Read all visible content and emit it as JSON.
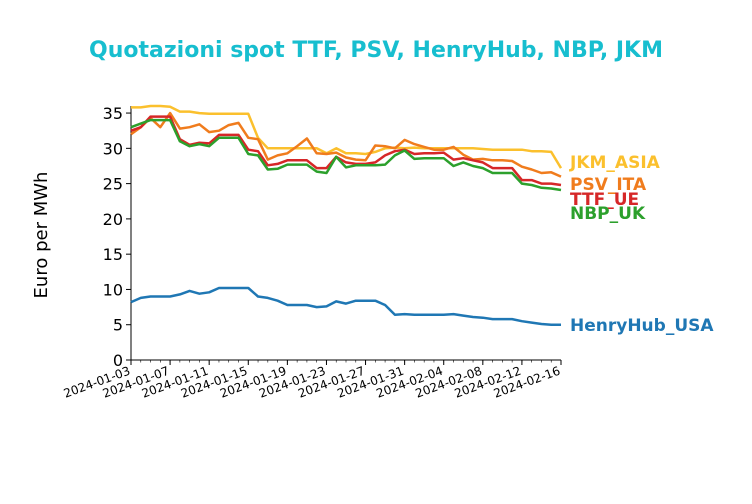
{
  "chart_data": {
    "type": "line",
    "title": "Quotazioni spot TTF, PSV, HenryHub, NBP, JKM",
    "xlabel": "",
    "ylabel": "Euro per MWh",
    "ylim": [
      0,
      36
    ],
    "yticks": [
      0,
      5,
      10,
      15,
      20,
      25,
      30,
      35
    ],
    "xlim": [
      "2024-01-03",
      "2024-02-16"
    ],
    "xtick_labels": [
      "2024-01-03",
      "2024-01-07",
      "2024-01-11",
      "2024-01-15",
      "2024-01-19",
      "2024-01-23",
      "2024-01-27",
      "2024-01-31",
      "2024-02-04",
      "2024-02-08",
      "2024-02-12",
      "2024-02-16"
    ],
    "grid": false,
    "legend": "direct labels at right end of lines",
    "series": [
      {
        "name": "JKM_ASIA",
        "color": "#fbc02d",
        "points": [
          [
            "2024-01-03",
            35.8
          ],
          [
            "2024-01-04",
            35.8
          ],
          [
            "2024-01-05",
            36.0
          ],
          [
            "2024-01-06",
            36.0
          ],
          [
            "2024-01-07",
            35.9
          ],
          [
            "2024-01-08",
            35.2
          ],
          [
            "2024-01-09",
            35.2
          ],
          [
            "2024-01-10",
            35.0
          ],
          [
            "2024-01-11",
            34.9
          ],
          [
            "2024-01-12",
            34.9
          ],
          [
            "2024-01-13",
            34.9
          ],
          [
            "2024-01-14",
            34.9
          ],
          [
            "2024-01-15",
            34.9
          ],
          [
            "2024-01-16",
            31.5
          ],
          [
            "2024-01-17",
            30.0
          ],
          [
            "2024-01-18",
            30.0
          ],
          [
            "2024-01-19",
            30.0
          ],
          [
            "2024-01-20",
            30.0
          ],
          [
            "2024-01-21",
            30.0
          ],
          [
            "2024-01-22",
            30.0
          ],
          [
            "2024-01-23",
            29.3
          ],
          [
            "2024-01-24",
            30.0
          ],
          [
            "2024-01-25",
            29.3
          ],
          [
            "2024-01-26",
            29.3
          ],
          [
            "2024-01-27",
            29.2
          ],
          [
            "2024-01-28",
            29.5
          ],
          [
            "2024-01-29",
            30.0
          ],
          [
            "2024-01-30",
            30.1
          ],
          [
            "2024-01-31",
            30.0
          ],
          [
            "2024-02-01",
            30.1
          ],
          [
            "2024-02-02",
            30.0
          ],
          [
            "2024-02-03",
            30.0
          ],
          [
            "2024-02-04",
            30.0
          ],
          [
            "2024-02-05",
            30.0
          ],
          [
            "2024-02-06",
            30.0
          ],
          [
            "2024-02-07",
            30.0
          ],
          [
            "2024-02-08",
            29.9
          ],
          [
            "2024-02-09",
            29.8
          ],
          [
            "2024-02-10",
            29.8
          ],
          [
            "2024-02-11",
            29.8
          ],
          [
            "2024-02-12",
            29.8
          ],
          [
            "2024-02-13",
            29.6
          ],
          [
            "2024-02-14",
            29.6
          ],
          [
            "2024-02-15",
            29.5
          ],
          [
            "2024-02-16",
            27.2
          ]
        ]
      },
      {
        "name": "PSV_ITA",
        "color": "#f07c1d",
        "points": [
          [
            "2024-01-03",
            32.0
          ],
          [
            "2024-01-04",
            33.0
          ],
          [
            "2024-01-05",
            34.3
          ],
          [
            "2024-01-06",
            33.0
          ],
          [
            "2024-01-07",
            35.0
          ],
          [
            "2024-01-08",
            32.8
          ],
          [
            "2024-01-09",
            33.0
          ],
          [
            "2024-01-10",
            33.4
          ],
          [
            "2024-01-11",
            32.3
          ],
          [
            "2024-01-12",
            32.5
          ],
          [
            "2024-01-13",
            33.3
          ],
          [
            "2024-01-14",
            33.6
          ],
          [
            "2024-01-15",
            31.5
          ],
          [
            "2024-01-16",
            31.3
          ],
          [
            "2024-01-17",
            28.4
          ],
          [
            "2024-01-18",
            29.0
          ],
          [
            "2024-01-19",
            29.3
          ],
          [
            "2024-01-20",
            30.3
          ],
          [
            "2024-01-21",
            31.4
          ],
          [
            "2024-01-22",
            29.3
          ],
          [
            "2024-01-23",
            29.2
          ],
          [
            "2024-01-24",
            29.4
          ],
          [
            "2024-01-25",
            28.7
          ],
          [
            "2024-01-26",
            28.4
          ],
          [
            "2024-01-27",
            28.3
          ],
          [
            "2024-01-28",
            30.4
          ],
          [
            "2024-01-29",
            30.3
          ],
          [
            "2024-01-30",
            30.0
          ],
          [
            "2024-01-31",
            31.2
          ],
          [
            "2024-02-01",
            30.6
          ],
          [
            "2024-02-02",
            30.2
          ],
          [
            "2024-02-03",
            29.8
          ],
          [
            "2024-02-04",
            29.8
          ],
          [
            "2024-02-05",
            30.2
          ],
          [
            "2024-02-06",
            29.1
          ],
          [
            "2024-02-07",
            28.4
          ],
          [
            "2024-02-08",
            28.5
          ],
          [
            "2024-02-09",
            28.3
          ],
          [
            "2024-02-10",
            28.3
          ],
          [
            "2024-02-11",
            28.2
          ],
          [
            "2024-02-12",
            27.4
          ],
          [
            "2024-02-13",
            27.0
          ],
          [
            "2024-02-14",
            26.5
          ],
          [
            "2024-02-15",
            26.6
          ],
          [
            "2024-02-16",
            26.0
          ]
        ]
      },
      {
        "name": "TTF_UE",
        "color": "#d62728",
        "points": [
          [
            "2024-01-03",
            32.5
          ],
          [
            "2024-01-04",
            33.0
          ],
          [
            "2024-01-05",
            34.5
          ],
          [
            "2024-01-06",
            34.5
          ],
          [
            "2024-01-07",
            34.5
          ],
          [
            "2024-01-08",
            31.3
          ],
          [
            "2024-01-09",
            30.5
          ],
          [
            "2024-01-10",
            30.8
          ],
          [
            "2024-01-11",
            30.7
          ],
          [
            "2024-01-12",
            31.9
          ],
          [
            "2024-01-13",
            31.9
          ],
          [
            "2024-01-14",
            31.9
          ],
          [
            "2024-01-15",
            29.8
          ],
          [
            "2024-01-16",
            29.6
          ],
          [
            "2024-01-17",
            27.6
          ],
          [
            "2024-01-18",
            27.8
          ],
          [
            "2024-01-19",
            28.3
          ],
          [
            "2024-01-20",
            28.3
          ],
          [
            "2024-01-21",
            28.3
          ],
          [
            "2024-01-22",
            27.2
          ],
          [
            "2024-01-23",
            27.2
          ],
          [
            "2024-01-24",
            28.8
          ],
          [
            "2024-01-25",
            28.0
          ],
          [
            "2024-01-26",
            27.8
          ],
          [
            "2024-01-27",
            27.8
          ],
          [
            "2024-01-28",
            28.0
          ],
          [
            "2024-01-29",
            29.0
          ],
          [
            "2024-01-30",
            29.6
          ],
          [
            "2024-01-31",
            29.8
          ],
          [
            "2024-02-01",
            29.2
          ],
          [
            "2024-02-02",
            29.3
          ],
          [
            "2024-02-03",
            29.3
          ],
          [
            "2024-02-04",
            29.4
          ],
          [
            "2024-02-05",
            28.4
          ],
          [
            "2024-02-06",
            28.6
          ],
          [
            "2024-02-07",
            28.3
          ],
          [
            "2024-02-08",
            28.0
          ],
          [
            "2024-02-09",
            27.2
          ],
          [
            "2024-02-10",
            27.2
          ],
          [
            "2024-02-11",
            27.2
          ],
          [
            "2024-02-12",
            25.5
          ],
          [
            "2024-02-13",
            25.5
          ],
          [
            "2024-02-14",
            25.0
          ],
          [
            "2024-02-15",
            25.0
          ],
          [
            "2024-02-16",
            24.8
          ]
        ]
      },
      {
        "name": "NBP_UK",
        "color": "#2ca02c",
        "points": [
          [
            "2024-01-03",
            33.0
          ],
          [
            "2024-01-04",
            33.5
          ],
          [
            "2024-01-05",
            34.0
          ],
          [
            "2024-01-06",
            34.0
          ],
          [
            "2024-01-07",
            34.0
          ],
          [
            "2024-01-08",
            31.0
          ],
          [
            "2024-01-09",
            30.3
          ],
          [
            "2024-01-10",
            30.6
          ],
          [
            "2024-01-11",
            30.3
          ],
          [
            "2024-01-12",
            31.5
          ],
          [
            "2024-01-13",
            31.5
          ],
          [
            "2024-01-14",
            31.5
          ],
          [
            "2024-01-15",
            29.2
          ],
          [
            "2024-01-16",
            29.0
          ],
          [
            "2024-01-17",
            27.0
          ],
          [
            "2024-01-18",
            27.1
          ],
          [
            "2024-01-19",
            27.7
          ],
          [
            "2024-01-20",
            27.7
          ],
          [
            "2024-01-21",
            27.7
          ],
          [
            "2024-01-22",
            26.7
          ],
          [
            "2024-01-23",
            26.5
          ],
          [
            "2024-01-24",
            28.8
          ],
          [
            "2024-01-25",
            27.3
          ],
          [
            "2024-01-26",
            27.6
          ],
          [
            "2024-01-27",
            27.6
          ],
          [
            "2024-01-28",
            27.6
          ],
          [
            "2024-01-29",
            27.7
          ],
          [
            "2024-01-30",
            29.0
          ],
          [
            "2024-01-31",
            29.7
          ],
          [
            "2024-02-01",
            28.5
          ],
          [
            "2024-02-02",
            28.6
          ],
          [
            "2024-02-03",
            28.6
          ],
          [
            "2024-02-04",
            28.6
          ],
          [
            "2024-02-05",
            27.5
          ],
          [
            "2024-02-06",
            28.0
          ],
          [
            "2024-02-07",
            27.5
          ],
          [
            "2024-02-08",
            27.2
          ],
          [
            "2024-02-09",
            26.5
          ],
          [
            "2024-02-10",
            26.5
          ],
          [
            "2024-02-11",
            26.5
          ],
          [
            "2024-02-12",
            25.0
          ],
          [
            "2024-02-13",
            24.8
          ],
          [
            "2024-02-14",
            24.4
          ],
          [
            "2024-02-15",
            24.3
          ],
          [
            "2024-02-16",
            24.1
          ]
        ]
      },
      {
        "name": "HenryHub_USA",
        "color": "#1f77b4",
        "points": [
          [
            "2024-01-03",
            8.2
          ],
          [
            "2024-01-04",
            8.8
          ],
          [
            "2024-01-05",
            9.0
          ],
          [
            "2024-01-06",
            9.0
          ],
          [
            "2024-01-07",
            9.0
          ],
          [
            "2024-01-08",
            9.3
          ],
          [
            "2024-01-09",
            9.8
          ],
          [
            "2024-01-10",
            9.4
          ],
          [
            "2024-01-11",
            9.6
          ],
          [
            "2024-01-12",
            10.2
          ],
          [
            "2024-01-13",
            10.2
          ],
          [
            "2024-01-14",
            10.2
          ],
          [
            "2024-01-15",
            10.2
          ],
          [
            "2024-01-16",
            9.0
          ],
          [
            "2024-01-17",
            8.8
          ],
          [
            "2024-01-18",
            8.4
          ],
          [
            "2024-01-19",
            7.8
          ],
          [
            "2024-01-20",
            7.8
          ],
          [
            "2024-01-21",
            7.8
          ],
          [
            "2024-01-22",
            7.5
          ],
          [
            "2024-01-23",
            7.6
          ],
          [
            "2024-01-24",
            8.3
          ],
          [
            "2024-01-25",
            8.0
          ],
          [
            "2024-01-26",
            8.4
          ],
          [
            "2024-01-27",
            8.4
          ],
          [
            "2024-01-28",
            8.4
          ],
          [
            "2024-01-29",
            7.8
          ],
          [
            "2024-01-30",
            6.4
          ],
          [
            "2024-01-31",
            6.5
          ],
          [
            "2024-02-01",
            6.4
          ],
          [
            "2024-02-02",
            6.4
          ],
          [
            "2024-02-03",
            6.4
          ],
          [
            "2024-02-04",
            6.4
          ],
          [
            "2024-02-05",
            6.5
          ],
          [
            "2024-02-06",
            6.3
          ],
          [
            "2024-02-07",
            6.1
          ],
          [
            "2024-02-08",
            6.0
          ],
          [
            "2024-02-09",
            5.8
          ],
          [
            "2024-02-10",
            5.8
          ],
          [
            "2024-02-11",
            5.8
          ],
          [
            "2024-02-12",
            5.5
          ],
          [
            "2024-02-13",
            5.3
          ],
          [
            "2024-02-14",
            5.1
          ],
          [
            "2024-02-15",
            5.0
          ],
          [
            "2024-02-16",
            5.0
          ]
        ]
      }
    ]
  }
}
